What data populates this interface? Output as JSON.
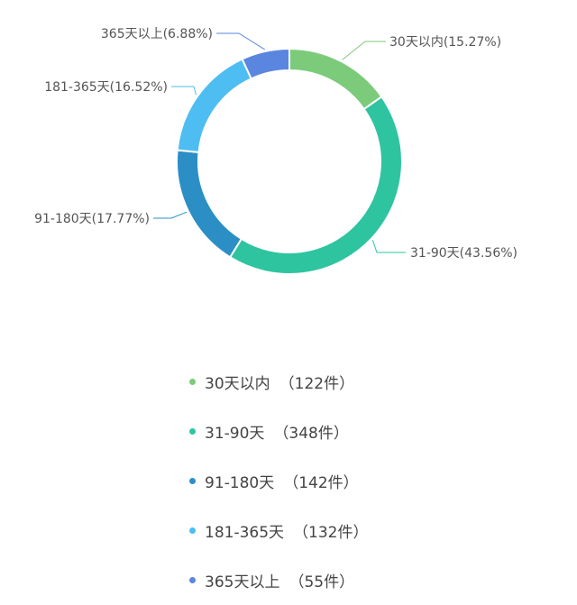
{
  "chart_data": {
    "type": "pie",
    "donut": true,
    "categories": [
      "30天以内",
      "31-90天",
      "91-180天",
      "181-365天",
      "365天以上"
    ],
    "values": [
      122,
      348,
      142,
      132,
      55
    ],
    "percent_labels": [
      "30天以内(15.27%)",
      "31-90天(43.56%)",
      "91-180天(17.77%)",
      "181-365天(16.52%)",
      "365天以上(6.88%)"
    ],
    "colors": [
      "#7ccb7a",
      "#2ec4a0",
      "#2b8fc6",
      "#4dbdf2",
      "#5b86e0"
    ],
    "legend_placement": "bottom",
    "legend": {
      "items": [
        {
          "label": "30天以内",
          "count": "（122件）"
        },
        {
          "label": "31-90天",
          "count": "（348件）"
        },
        {
          "label": "91-180天",
          "count": "（142件）"
        },
        {
          "label": "181-365天",
          "count": "（132件）"
        },
        {
          "label": "365天以上",
          "count": "（55件）"
        }
      ]
    }
  }
}
